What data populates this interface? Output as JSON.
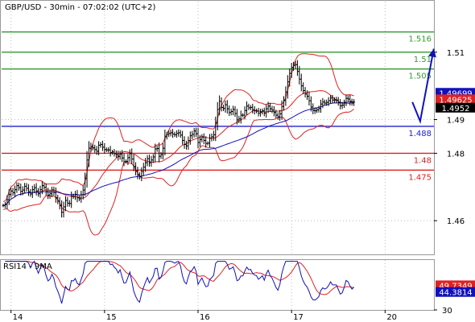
{
  "chart_data": {
    "type": "candlestick",
    "title": "GBP/USD - 30min - 07:02:02 (UTC+2)",
    "ylim": [
      1.45,
      1.525
    ],
    "y_ticks": [
      {
        "value": 1.51,
        "label": "1.51"
      },
      {
        "value": 1.49,
        "label": "1.49"
      },
      {
        "value": 1.48,
        "label": "1.48"
      },
      {
        "value": 1.46,
        "label": "1.46"
      }
    ],
    "x_ticks": [
      {
        "index": 4,
        "label": "14"
      },
      {
        "index": 52,
        "label": "15"
      },
      {
        "index": 100,
        "label": "16"
      },
      {
        "index": 148,
        "label": "17"
      },
      {
        "index": 196,
        "label": "20"
      }
    ],
    "levels": [
      {
        "value": 1.516,
        "label": "1.516",
        "color": "#339933"
      },
      {
        "value": 1.51,
        "label": "1.51",
        "color": "#339933"
      },
      {
        "value": 1.505,
        "label": "1.505",
        "color": "#339933"
      },
      {
        "value": 1.488,
        "label": "1.488",
        "color": "#2222cc"
      },
      {
        "value": 1.48,
        "label": "1.48",
        "color": "#dd2222"
      },
      {
        "value": 1.475,
        "label": "1.475",
        "color": "#dd2222"
      }
    ],
    "price_tags": [
      {
        "value": 1.49699,
        "label": "1.49699",
        "bg": "#1111bb",
        "fg": "#ffffff"
      },
      {
        "value": 1.49625,
        "label": "1.49625",
        "bg": "#dd2222",
        "fg": "#ffffff"
      },
      {
        "value": 1.4952,
        "label": "1.4952",
        "bg": "#000000",
        "fg": "#ffffff"
      }
    ],
    "projection": [
      [
        210,
        1.4952
      ],
      [
        214,
        1.4895
      ],
      [
        221,
        1.511
      ]
    ],
    "close": [
      1.4645,
      1.4648,
      1.4662,
      1.4678,
      1.4688,
      1.4683,
      1.4692,
      1.4704,
      1.4698,
      1.4687,
      1.4691,
      1.4702,
      1.4696,
      1.4686,
      1.4679,
      1.4692,
      1.4698,
      1.4688,
      1.468,
      1.4692,
      1.4704,
      1.4699,
      1.4686,
      1.4676,
      1.468,
      1.4691,
      1.4684,
      1.4668,
      1.4658,
      1.4645,
      1.4625,
      1.4641,
      1.466,
      1.4652,
      1.4651,
      1.4673,
      1.4672,
      1.4678,
      1.4668,
      1.4665,
      1.4677,
      1.4691,
      1.4725,
      1.478,
      1.4815,
      1.482,
      1.4816,
      1.4811,
      1.4806,
      1.4824,
      1.4826,
      1.4818,
      1.4811,
      1.481,
      1.481,
      1.4802,
      1.4804,
      1.4799,
      1.4796,
      1.479,
      1.4798,
      1.4786,
      1.4775,
      1.4776,
      1.4787,
      1.4799,
      1.4783,
      1.4761,
      1.4747,
      1.4736,
      1.473,
      1.4746,
      1.4759,
      1.4772,
      1.4784,
      1.4772,
      1.478,
      1.4789,
      1.4813,
      1.4814,
      1.4791,
      1.4796,
      1.4815,
      1.4849,
      1.4856,
      1.4859,
      1.4861,
      1.4857,
      1.4855,
      1.4859,
      1.4861,
      1.4854,
      1.4838,
      1.4826,
      1.4822,
      1.4838,
      1.4852,
      1.4856,
      1.4866,
      1.4858,
      1.4832,
      1.4841,
      1.4848,
      1.4838,
      1.4829,
      1.483,
      1.4845,
      1.4849,
      1.4855,
      1.489,
      1.493,
      1.4954,
      1.4936,
      1.4933,
      1.4944,
      1.4932,
      1.4921,
      1.4924,
      1.493,
      1.4918,
      1.4899,
      1.4902,
      1.4913,
      1.4913,
      1.4927,
      1.494,
      1.4935,
      1.4936,
      1.4929,
      1.4926,
      1.4925,
      1.4919,
      1.4922,
      1.4926,
      1.4919,
      1.4932,
      1.494,
      1.4932,
      1.4928,
      1.4921,
      1.4913,
      1.4908,
      1.4917,
      1.4939,
      1.4957,
      1.4982,
      1.5012,
      1.5037,
      1.5055,
      1.5061,
      1.5063,
      1.5043,
      1.502,
      1.5,
      1.4986,
      1.4976,
      1.4969,
      1.4956,
      1.4937,
      1.4927,
      1.4926,
      1.4929,
      1.4933,
      1.4946,
      1.4952,
      1.4949,
      1.4951,
      1.4956,
      1.4964,
      1.4958,
      1.4958,
      1.4958,
      1.495,
      1.4941,
      1.4943,
      1.4951,
      1.4963,
      1.4961,
      1.4954,
      1.4949,
      1.4952
    ],
    "rsi": {
      "name": "RSI14 - 9MA",
      "ylim": [
        30,
        70
      ],
      "y_ticks": [
        {
          "value": 30,
          "label": "30"
        }
      ],
      "tags": [
        {
          "value": 49.7349,
          "label": "49.7349",
          "bg": "#dd2222",
          "fg": "#ffffff"
        },
        {
          "value": 44.3814,
          "label": "44.3814",
          "bg": "#1111bb",
          "fg": "#ffffff"
        }
      ]
    }
  }
}
